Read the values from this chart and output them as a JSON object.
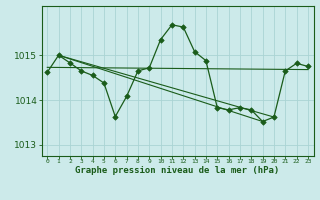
{
  "title": "Graphe pression niveau de la mer (hPa)",
  "bg_color": "#cceaea",
  "grid_color": "#aad4d4",
  "line_color": "#1a5c1a",
  "main_x": [
    0,
    1,
    2,
    3,
    4,
    5,
    6,
    7,
    8,
    9,
    10,
    11,
    12,
    13,
    14,
    15,
    16,
    17,
    18,
    19,
    20,
    21,
    22,
    23
  ],
  "main_y": [
    1014.62,
    1015.0,
    1014.83,
    1014.65,
    1014.55,
    1014.38,
    1013.63,
    1014.08,
    1014.65,
    1014.72,
    1015.35,
    1015.68,
    1015.63,
    1015.08,
    1014.88,
    1013.83,
    1013.78,
    1013.83,
    1013.78,
    1013.52,
    1013.62,
    1014.65,
    1014.82,
    1014.75
  ],
  "trend1_x": [
    0,
    23
  ],
  "trend1_y": [
    1014.73,
    1014.68
  ],
  "trend2_x": [
    1,
    19
  ],
  "trend2_y": [
    1015.0,
    1013.52
  ],
  "trend3_x": [
    1,
    20
  ],
  "trend3_y": [
    1015.0,
    1013.62
  ],
  "ylim": [
    1012.75,
    1016.1
  ],
  "yticks": [
    1013,
    1014,
    1015
  ],
  "xlim": [
    -0.5,
    23.5
  ],
  "xticks": [
    0,
    1,
    2,
    3,
    4,
    5,
    6,
    7,
    8,
    9,
    10,
    11,
    12,
    13,
    14,
    15,
    16,
    17,
    18,
    19,
    20,
    21,
    22,
    23
  ]
}
